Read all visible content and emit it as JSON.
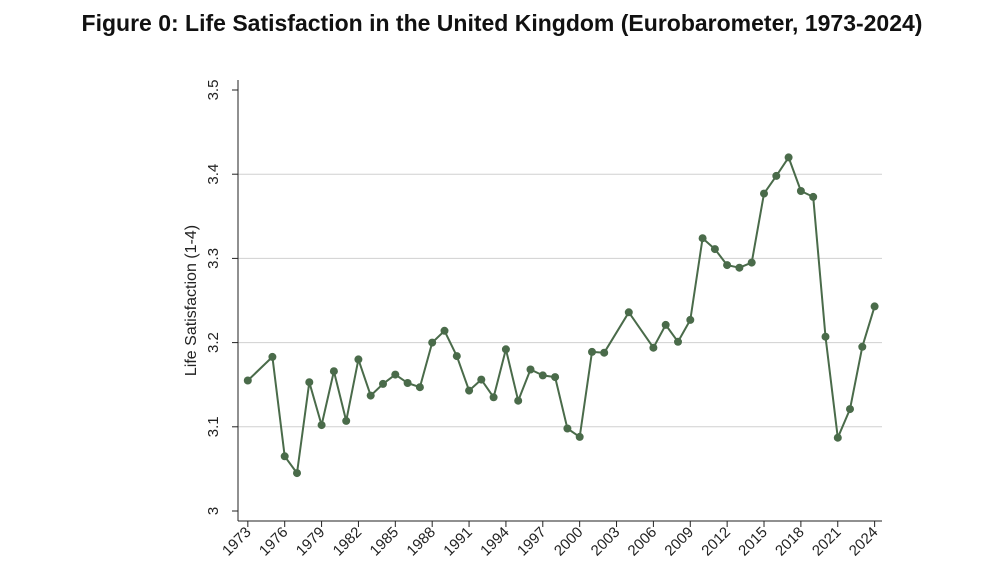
{
  "chart_data": {
    "type": "line",
    "title": "Figure 0: Life Satisfaction in the United Kingdom (Eurobarometer, 1973-2024)",
    "xlabel": "",
    "ylabel": "Life Satisfaction (1-4)",
    "ylim": [
      3.0,
      3.5
    ],
    "yticks": [
      "3",
      "3.1",
      "3.2",
      "3.3",
      "3.4",
      "3.5"
    ],
    "xticks": [
      "1973",
      "1976",
      "1979",
      "1982",
      "1985",
      "1988",
      "1991",
      "1994",
      "1997",
      "2000",
      "2003",
      "2006",
      "2009",
      "2012",
      "2015",
      "2018",
      "2021",
      "2024"
    ],
    "grid": true,
    "colors": {
      "line": "#4a6b4a",
      "grid": "#d0d0d0",
      "axis": "#222222"
    },
    "series": [
      {
        "x": [
          1973,
          1975,
          1976,
          1977,
          1978,
          1979,
          1980,
          1981,
          1982,
          1983,
          1984,
          1985,
          1986,
          1987,
          1988,
          1989,
          1990,
          1991,
          1992,
          1993,
          1994,
          1995,
          1996,
          1997,
          1998,
          1999,
          2000,
          2001,
          2002,
          2004,
          2006,
          2007,
          2008,
          2009,
          2010,
          2011,
          2012,
          2013,
          2014,
          2015,
          2016,
          2017,
          2018,
          2019,
          2020,
          2021,
          2022,
          2023,
          2024
        ],
        "values": [
          3.155,
          3.183,
          3.065,
          3.045,
          3.153,
          3.102,
          3.166,
          3.107,
          3.18,
          3.137,
          3.151,
          3.162,
          3.152,
          3.147,
          3.2,
          3.214,
          3.184,
          3.143,
          3.156,
          3.135,
          3.192,
          3.131,
          3.168,
          3.161,
          3.159,
          3.098,
          3.088,
          3.189,
          3.188,
          3.236,
          3.194,
          3.221,
          3.201,
          3.227,
          3.324,
          3.311,
          3.292,
          3.289,
          3.295,
          3.377,
          3.398,
          3.42,
          3.38,
          3.373,
          3.207,
          3.087,
          3.121,
          3.195,
          3.243
        ]
      }
    ]
  }
}
